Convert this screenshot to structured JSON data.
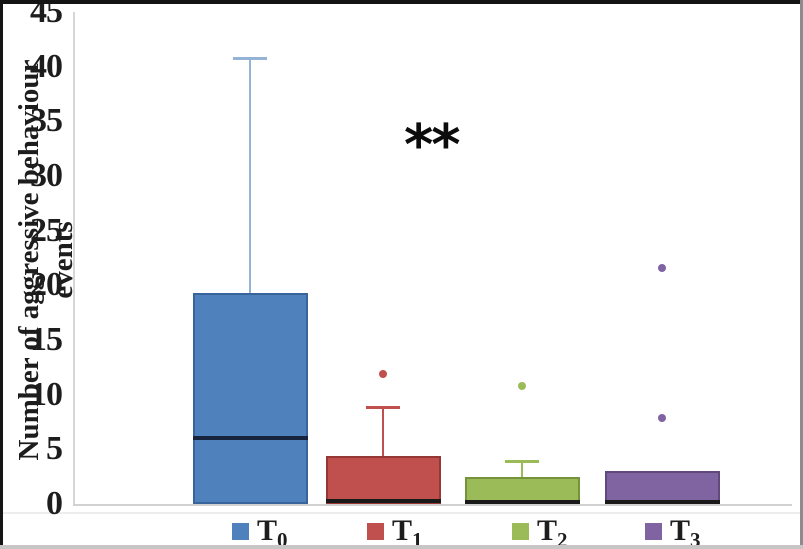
{
  "chart_data": {
    "type": "boxplot",
    "title": "",
    "xlabel": "",
    "ylabel": "Number of aggressive behaviour events",
    "ylim": [
      0,
      45
    ],
    "yticks": [
      0,
      5,
      10,
      15,
      20,
      25,
      30,
      35,
      40,
      45
    ],
    "grid": false,
    "annotation": "**",
    "legend_position": "bottom",
    "categories": [
      "T0",
      "T1",
      "T2",
      "T3"
    ],
    "series": [
      {
        "name": "T0",
        "label_main": "T",
        "label_sub": "0",
        "q1": 0,
        "median": 6.0,
        "q3": 19.3,
        "whisker_low": 0,
        "whisker_high": 40.8,
        "outliers": [],
        "fill": "#4F81BD",
        "border": "#38639B",
        "whisker_color": "#95B3D7",
        "median_color": "#17243E"
      },
      {
        "name": "T1",
        "label_main": "T",
        "label_sub": "1",
        "q1": 0,
        "median": 0.25,
        "q3": 4.4,
        "whisker_low": 0,
        "whisker_high": 8.9,
        "outliers": [
          11.9
        ],
        "fill": "#C0504D",
        "border": "#953735",
        "whisker_color": "#C0504D",
        "median_color": "#1A1A1A"
      },
      {
        "name": "T2",
        "label_main": "T",
        "label_sub": "2",
        "q1": 0,
        "median": 0.2,
        "q3": 2.5,
        "whisker_low": 0,
        "whisker_high": 3.9,
        "outliers": [
          10.8
        ],
        "fill": "#9BBB59",
        "border": "#76923C",
        "whisker_color": "#9BBB59",
        "median_color": "#1A1A1A"
      },
      {
        "name": "T3",
        "label_main": "T",
        "label_sub": "3",
        "q1": 0,
        "median": 0.15,
        "q3": 3.0,
        "whisker_low": 0,
        "whisker_high": 3.0,
        "outliers": [
          21.6,
          7.9
        ],
        "fill": "#8064A2",
        "border": "#604A7B",
        "whisker_color": "#8064A2",
        "median_color": "#1A1A1A"
      }
    ]
  },
  "frame": {
    "border_top_color": "#141414",
    "border_left_color": "#141414",
    "border_right_color": "#8b8b8b",
    "border_bottom_color": "#c6c6c6"
  }
}
